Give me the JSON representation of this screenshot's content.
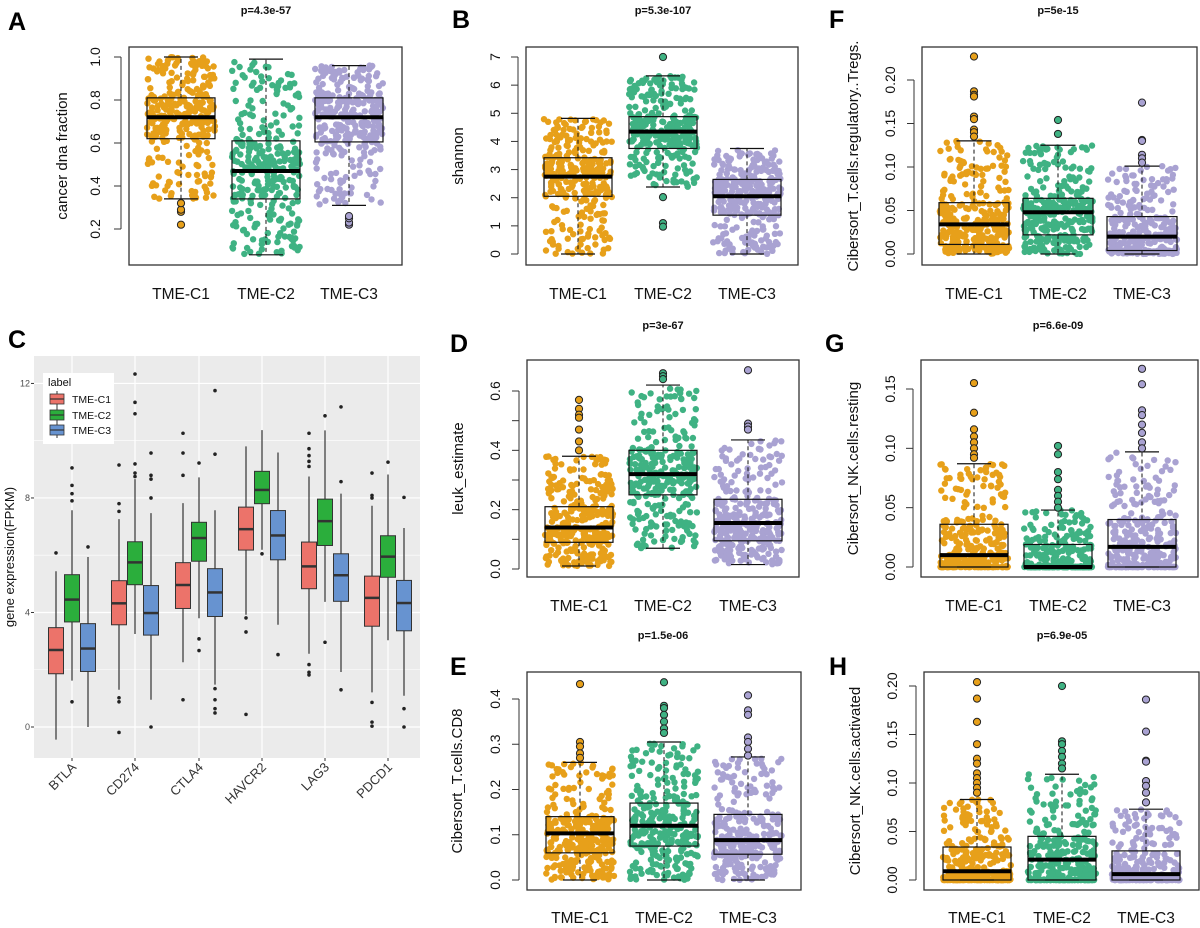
{
  "panel_letters": {
    "A": "A",
    "B": "B",
    "C": "C",
    "D": "D",
    "E": "E",
    "F": "F",
    "G": "G",
    "H": "H"
  },
  "colors": {
    "TME-C1": "#E7A01A",
    "TME-C2": "#3FB283",
    "TME-C3": "#A9A2D2",
    "gg_TME-C1": "#EC736A",
    "gg_TME-C2": "#2BAE3C",
    "gg_TME-C3": "#6793D0"
  },
  "chart_data": [
    {
      "id": "A",
      "type": "box",
      "title": "p=4.3e-57",
      "ylabel": "cancer dna fraction",
      "xlabel": "",
      "categories": [
        "TME-C1",
        "TME-C2",
        "TME-C3"
      ],
      "ylim": [
        0.08,
        1.05
      ],
      "ticks": [
        0.2,
        0.4,
        0.6,
        0.8,
        1.0
      ],
      "tick_labels": [
        "0.2",
        "0.4",
        "0.6",
        "0.8",
        "1.0"
      ],
      "minor_ticks": [],
      "groups": [
        {
          "name": "TME-C1",
          "whisker_low": 0.34,
          "q1": 0.62,
          "median": 0.72,
          "q3": 0.81,
          "whisker_high": 1.0,
          "outliers": [
            0.22,
            0.28,
            0.29,
            0.32
          ]
        },
        {
          "name": "TME-C2",
          "whisker_low": 0.08,
          "q1": 0.34,
          "median": 0.47,
          "q3": 0.61,
          "whisker_high": 0.99,
          "outliers": []
        },
        {
          "name": "TME-C3",
          "whisker_low": 0.31,
          "q1": 0.605,
          "median": 0.72,
          "q3": 0.81,
          "whisker_high": 0.96,
          "outliers": [
            0.22,
            0.23,
            0.25,
            0.26
          ]
        }
      ]
    },
    {
      "id": "B",
      "type": "box",
      "title": "p=5.3e-107",
      "ylabel": "shannon",
      "xlabel": "",
      "categories": [
        "TME-C1",
        "TME-C2",
        "TME-C3"
      ],
      "ylim": [
        0,
        7
      ],
      "ticks": [
        0,
        1,
        2,
        3,
        4,
        5,
        6,
        7
      ],
      "tick_labels": [
        "0",
        "1",
        "2",
        "3",
        "4",
        "5",
        "6",
        "7"
      ],
      "minor_ticks": [],
      "groups": [
        {
          "name": "TME-C1",
          "whisker_low": 0,
          "q1": 2.05,
          "median": 2.75,
          "q3": 3.42,
          "whisker_high": 4.82,
          "outliers": []
        },
        {
          "name": "TME-C2",
          "whisker_low": 2.38,
          "q1": 3.75,
          "median": 4.35,
          "q3": 4.88,
          "whisker_high": 6.33,
          "outliers": [
            7.0,
            2.02,
            1.1,
            0.97
          ]
        },
        {
          "name": "TME-C3",
          "whisker_low": 0,
          "q1": 1.38,
          "median": 2.05,
          "q3": 2.65,
          "whisker_high": 3.75,
          "outliers": []
        }
      ]
    },
    {
      "id": "F",
      "type": "box",
      "title": "p=5e-15",
      "ylabel": "Cibersort_T.cells.regulatory..Tregs.",
      "xlabel": "",
      "categories": [
        "TME-C1",
        "TME-C2",
        "TME-C3"
      ],
      "ylim": [
        0,
        0.23
      ],
      "ticks": [
        0,
        0.05,
        0.1,
        0.15,
        0.2
      ],
      "tick_labels": [
        "0.00",
        "0.05",
        "0.10",
        "0.15",
        "0.20"
      ],
      "minor_ticks": [],
      "groups": [
        {
          "name": "TME-C1",
          "whisker_low": 0,
          "q1": 0.011,
          "median": 0.034,
          "q3": 0.059,
          "whisker_high": 0.13,
          "outliers": [
            0.227,
            0.187,
            0.183,
            0.181,
            0.158,
            0.155,
            0.143,
            0.14,
            0.135
          ]
        },
        {
          "name": "TME-C2",
          "whisker_low": 0,
          "q1": 0.022,
          "median": 0.048,
          "q3": 0.064,
          "whisker_high": 0.125,
          "outliers": [
            0.154,
            0.138
          ]
        },
        {
          "name": "TME-C3",
          "whisker_low": 0,
          "q1": 0.004,
          "median": 0.02,
          "q3": 0.043,
          "whisker_high": 0.101,
          "outliers": [
            0.174,
            0.131,
            0.13,
            0.114,
            0.11,
            0.105
          ]
        }
      ]
    },
    {
      "id": "D",
      "type": "box",
      "title": "p=3e-67",
      "ylabel": "leuk_estimate",
      "xlabel": "",
      "categories": [
        "TME-C1",
        "TME-C2",
        "TME-C3"
      ],
      "ylim": [
        0,
        0.67
      ],
      "ticks": [
        0,
        0.2,
        0.4,
        0.6
      ],
      "tick_labels": [
        "0.0",
        "0.2",
        "0.4",
        "0.6"
      ],
      "minor_ticks": [
        0.1,
        0.3,
        0.5
      ],
      "groups": [
        {
          "name": "TME-C1",
          "whisker_low": 0.01,
          "q1": 0.09,
          "median": 0.14,
          "q3": 0.21,
          "whisker_high": 0.38,
          "outliers": [
            0.57,
            0.54,
            0.52,
            0.51,
            0.47,
            0.43,
            0.4
          ]
        },
        {
          "name": "TME-C2",
          "whisker_low": 0.07,
          "q1": 0.25,
          "median": 0.32,
          "q3": 0.4,
          "whisker_high": 0.62,
          "outliers": [
            0.66,
            0.65,
            0.64
          ]
        },
        {
          "name": "TME-C3",
          "whisker_low": 0.015,
          "q1": 0.095,
          "median": 0.155,
          "q3": 0.235,
          "whisker_high": 0.435,
          "outliers": [
            0.67,
            0.49,
            0.48,
            0.47
          ]
        }
      ]
    },
    {
      "id": "G",
      "type": "box",
      "title": "p=6.6e-09",
      "ylabel": "Cibersort_NK.cells.resting",
      "xlabel": "",
      "categories": [
        "TME-C1",
        "TME-C2",
        "TME-C3"
      ],
      "ylim": [
        0,
        0.167
      ],
      "ticks": [
        0,
        0.05,
        0.1,
        0.15
      ],
      "tick_labels": [
        "0.00",
        "0.05",
        "0.10",
        "0.15"
      ],
      "minor_ticks": [],
      "groups": [
        {
          "name": "TME-C1",
          "whisker_low": 0,
          "q1": 0,
          "median": 0.01,
          "q3": 0.036,
          "whisker_high": 0.087,
          "outliers": [
            0.155,
            0.13,
            0.116,
            0.11,
            0.105,
            0.1,
            0.095,
            0.092
          ]
        },
        {
          "name": "TME-C2",
          "whisker_low": 0,
          "q1": 0,
          "median": 0,
          "q3": 0.019,
          "whisker_high": 0.048,
          "outliers": [
            0.102,
            0.095,
            0.08,
            0.074,
            0.065,
            0.06,
            0.055,
            0.05
          ]
        },
        {
          "name": "TME-C3",
          "whisker_low": 0,
          "q1": 0,
          "median": 0.017,
          "q3": 0.04,
          "whisker_high": 0.097,
          "outliers": [
            0.167,
            0.154,
            0.132,
            0.128,
            0.12,
            0.113,
            0.105,
            0.1
          ]
        }
      ]
    },
    {
      "id": "E",
      "type": "box",
      "title": "p=1.5e-06",
      "ylabel": "Cibersort_T.cells.CD8",
      "xlabel": "",
      "categories": [
        "TME-C1",
        "TME-C2",
        "TME-C3"
      ],
      "ylim": [
        0,
        0.437
      ],
      "ticks": [
        0,
        0.1,
        0.2,
        0.3,
        0.4
      ],
      "tick_labels": [
        "0.0",
        "0.1",
        "0.2",
        "0.3",
        "0.4"
      ],
      "minor_ticks": [],
      "groups": [
        {
          "name": "TME-C1",
          "whisker_low": 0,
          "q1": 0.06,
          "median": 0.103,
          "q3": 0.14,
          "whisker_high": 0.26,
          "outliers": [
            0.433,
            0.305,
            0.295,
            0.28,
            0.27
          ]
        },
        {
          "name": "TME-C2",
          "whisker_low": 0,
          "q1": 0.075,
          "median": 0.12,
          "q3": 0.17,
          "whisker_high": 0.305,
          "outliers": [
            0.437,
            0.385,
            0.38,
            0.365,
            0.35,
            0.335,
            0.325
          ]
        },
        {
          "name": "TME-C3",
          "whisker_low": 0,
          "q1": 0.057,
          "median": 0.088,
          "q3": 0.145,
          "whisker_high": 0.272,
          "outliers": [
            0.408,
            0.375,
            0.365,
            0.315,
            0.305,
            0.29,
            0.275
          ]
        }
      ]
    },
    {
      "id": "H",
      "type": "box",
      "title": "p=6.9e-05",
      "ylabel": "Cibersort_NK.cells.activated",
      "xlabel": "",
      "categories": [
        "TME-C1",
        "TME-C2",
        "TME-C3"
      ],
      "ylim": [
        0,
        0.204
      ],
      "ticks": [
        0,
        0.05,
        0.1,
        0.15,
        0.2
      ],
      "tick_labels": [
        "0.00",
        "0.05",
        "0.10",
        "0.15",
        "0.20"
      ],
      "minor_ticks": [],
      "groups": [
        {
          "name": "TME-C1",
          "whisker_low": 0,
          "q1": 0,
          "median": 0.009,
          "q3": 0.034,
          "whisker_high": 0.083,
          "outliers": [
            0.204,
            0.187,
            0.163,
            0.14,
            0.125,
            0.12,
            0.11,
            0.105,
            0.1,
            0.095,
            0.09
          ]
        },
        {
          "name": "TME-C2",
          "whisker_low": 0,
          "q1": 0,
          "median": 0.021,
          "q3": 0.045,
          "whisker_high": 0.109,
          "outliers": [
            0.2,
            0.143,
            0.14,
            0.133,
            0.127,
            0.12,
            0.115
          ]
        },
        {
          "name": "TME-C3",
          "whisker_low": 0,
          "q1": 0,
          "median": 0.006,
          "q3": 0.03,
          "whisker_high": 0.073,
          "outliers": [
            0.186,
            0.153,
            0.123,
            0.122,
            0.102,
            0.097,
            0.09,
            0.08
          ]
        }
      ]
    },
    {
      "id": "C",
      "type": "box",
      "title": "",
      "ylabel": "gene expression(FPKM)",
      "xlabel": "",
      "categories": [
        "BTLA",
        "CD274",
        "CTLA4",
        "HAVCR2",
        "LAG3",
        "PDCD1"
      ],
      "ylim": [
        -1.1,
        13
      ],
      "ticks": [
        0,
        4,
        8,
        12
      ],
      "tick_labels": [
        "0",
        "4",
        "8",
        "12"
      ],
      "minor_ticks": [
        2,
        6,
        10
      ],
      "grid": true,
      "legend": {
        "title": "label",
        "position": "top-left",
        "entries": [
          "TME-C1",
          "TME-C2",
          "TME-C3"
        ]
      },
      "series": [
        {
          "name": "TME-C1",
          "boxes": [
            {
              "whisker_low": -0.44,
              "q1": 1.86,
              "median": 2.69,
              "q3": 3.47,
              "whisker_high": 5.44,
              "outliers": [
                6.08
              ]
            },
            {
              "whisker_low": 1.3,
              "q1": 3.57,
              "median": 4.32,
              "q3": 5.11,
              "whisker_high": 7.26,
              "outliers": [
                9.15,
                7.8,
                7.53,
                1.02,
                0.88,
                -0.19
              ]
            },
            {
              "whisker_low": 2.26,
              "q1": 4.14,
              "median": 4.96,
              "q3": 5.74,
              "whisker_high": 7.82,
              "outliers": [
                10.26,
                9.57,
                8.79,
                0.95
              ]
            },
            {
              "whisker_low": 3.92,
              "q1": 6.18,
              "median": 6.91,
              "q3": 7.68,
              "whisker_high": 9.8,
              "outliers": [
                3.81,
                3.32,
                0.44
              ]
            },
            {
              "whisker_low": 2.56,
              "q1": 4.83,
              "median": 5.61,
              "q3": 6.46,
              "whisker_high": 8.75,
              "outliers": [
                10.26,
                9.72,
                9.48,
                9.28,
                9.1,
                2.18,
                1.91,
                1.82
              ]
            },
            {
              "whisker_low": 1.21,
              "q1": 3.52,
              "median": 4.51,
              "q3": 5.27,
              "whisker_high": 7.73,
              "outliers": [
                8.87,
                8.09,
                8.0,
                0.86,
                0.17,
                0.03
              ]
            }
          ]
        },
        {
          "name": "TME-C2",
          "boxes": [
            {
              "whisker_low": 1.62,
              "q1": 3.67,
              "median": 4.45,
              "q3": 5.32,
              "whisker_high": 7.57,
              "outliers": [
                9.05,
                8.44,
                8.15,
                7.9,
                0.88
              ]
            },
            {
              "whisker_low": 3.25,
              "q1": 4.97,
              "median": 5.75,
              "q3": 6.47,
              "whisker_high": 8.66,
              "outliers": [
                12.33,
                11.34,
                10.94,
                9.19,
                8.87,
                8.75
              ]
            },
            {
              "whisker_low": 3.8,
              "q1": 5.79,
              "median": 6.6,
              "q3": 7.15,
              "whisker_high": 8.72,
              "outliers": [
                9.22,
                3.08,
                2.67
              ]
            },
            {
              "whisker_low": 6.19,
              "q1": 7.8,
              "median": 8.28,
              "q3": 8.93,
              "whisker_high": 10.37,
              "outliers": [
                6.05
              ]
            },
            {
              "whisker_low": 4.37,
              "q1": 6.34,
              "median": 7.19,
              "q3": 7.96,
              "whisker_high": 10.36,
              "outliers": [
                10.87,
                2.96
              ]
            },
            {
              "whisker_low": 3.03,
              "q1": 5.23,
              "median": 5.95,
              "q3": 6.68,
              "whisker_high": 8.82,
              "outliers": [
                9.25
              ]
            }
          ]
        },
        {
          "name": "TME-C3",
          "boxes": [
            {
              "whisker_low": 0,
              "q1": 1.94,
              "median": 2.74,
              "q3": 3.61,
              "whisker_high": 5.94,
              "outliers": [
                6.29
              ]
            },
            {
              "whisker_low": 0.95,
              "q1": 3.21,
              "median": 3.98,
              "q3": 4.94,
              "whisker_high": 7.47,
              "outliers": [
                9.57,
                8.79,
                8.66,
                8.0,
                0
              ]
            },
            {
              "whisker_low": 1.48,
              "q1": 3.86,
              "median": 4.7,
              "q3": 5.53,
              "whisker_high": 7.57,
              "outliers": [
                11.75,
                9.53,
                1.34,
                0.95,
                0.64,
                0.49
              ]
            },
            {
              "whisker_low": 3.57,
              "q1": 5.84,
              "median": 6.69,
              "q3": 7.56,
              "whisker_high": 9.59,
              "outliers": [
                2.53
              ]
            },
            {
              "whisker_low": 1.92,
              "q1": 4.39,
              "median": 5.3,
              "q3": 6.05,
              "whisker_high": 8.15,
              "outliers": [
                11.18,
                8.57,
                1.3
              ]
            },
            {
              "whisker_low": 1.09,
              "q1": 3.36,
              "median": 4.33,
              "q3": 5.12,
              "whisker_high": 6.95,
              "outliers": [
                8.02,
                0.64,
                0
              ]
            }
          ]
        }
      ]
    }
  ]
}
